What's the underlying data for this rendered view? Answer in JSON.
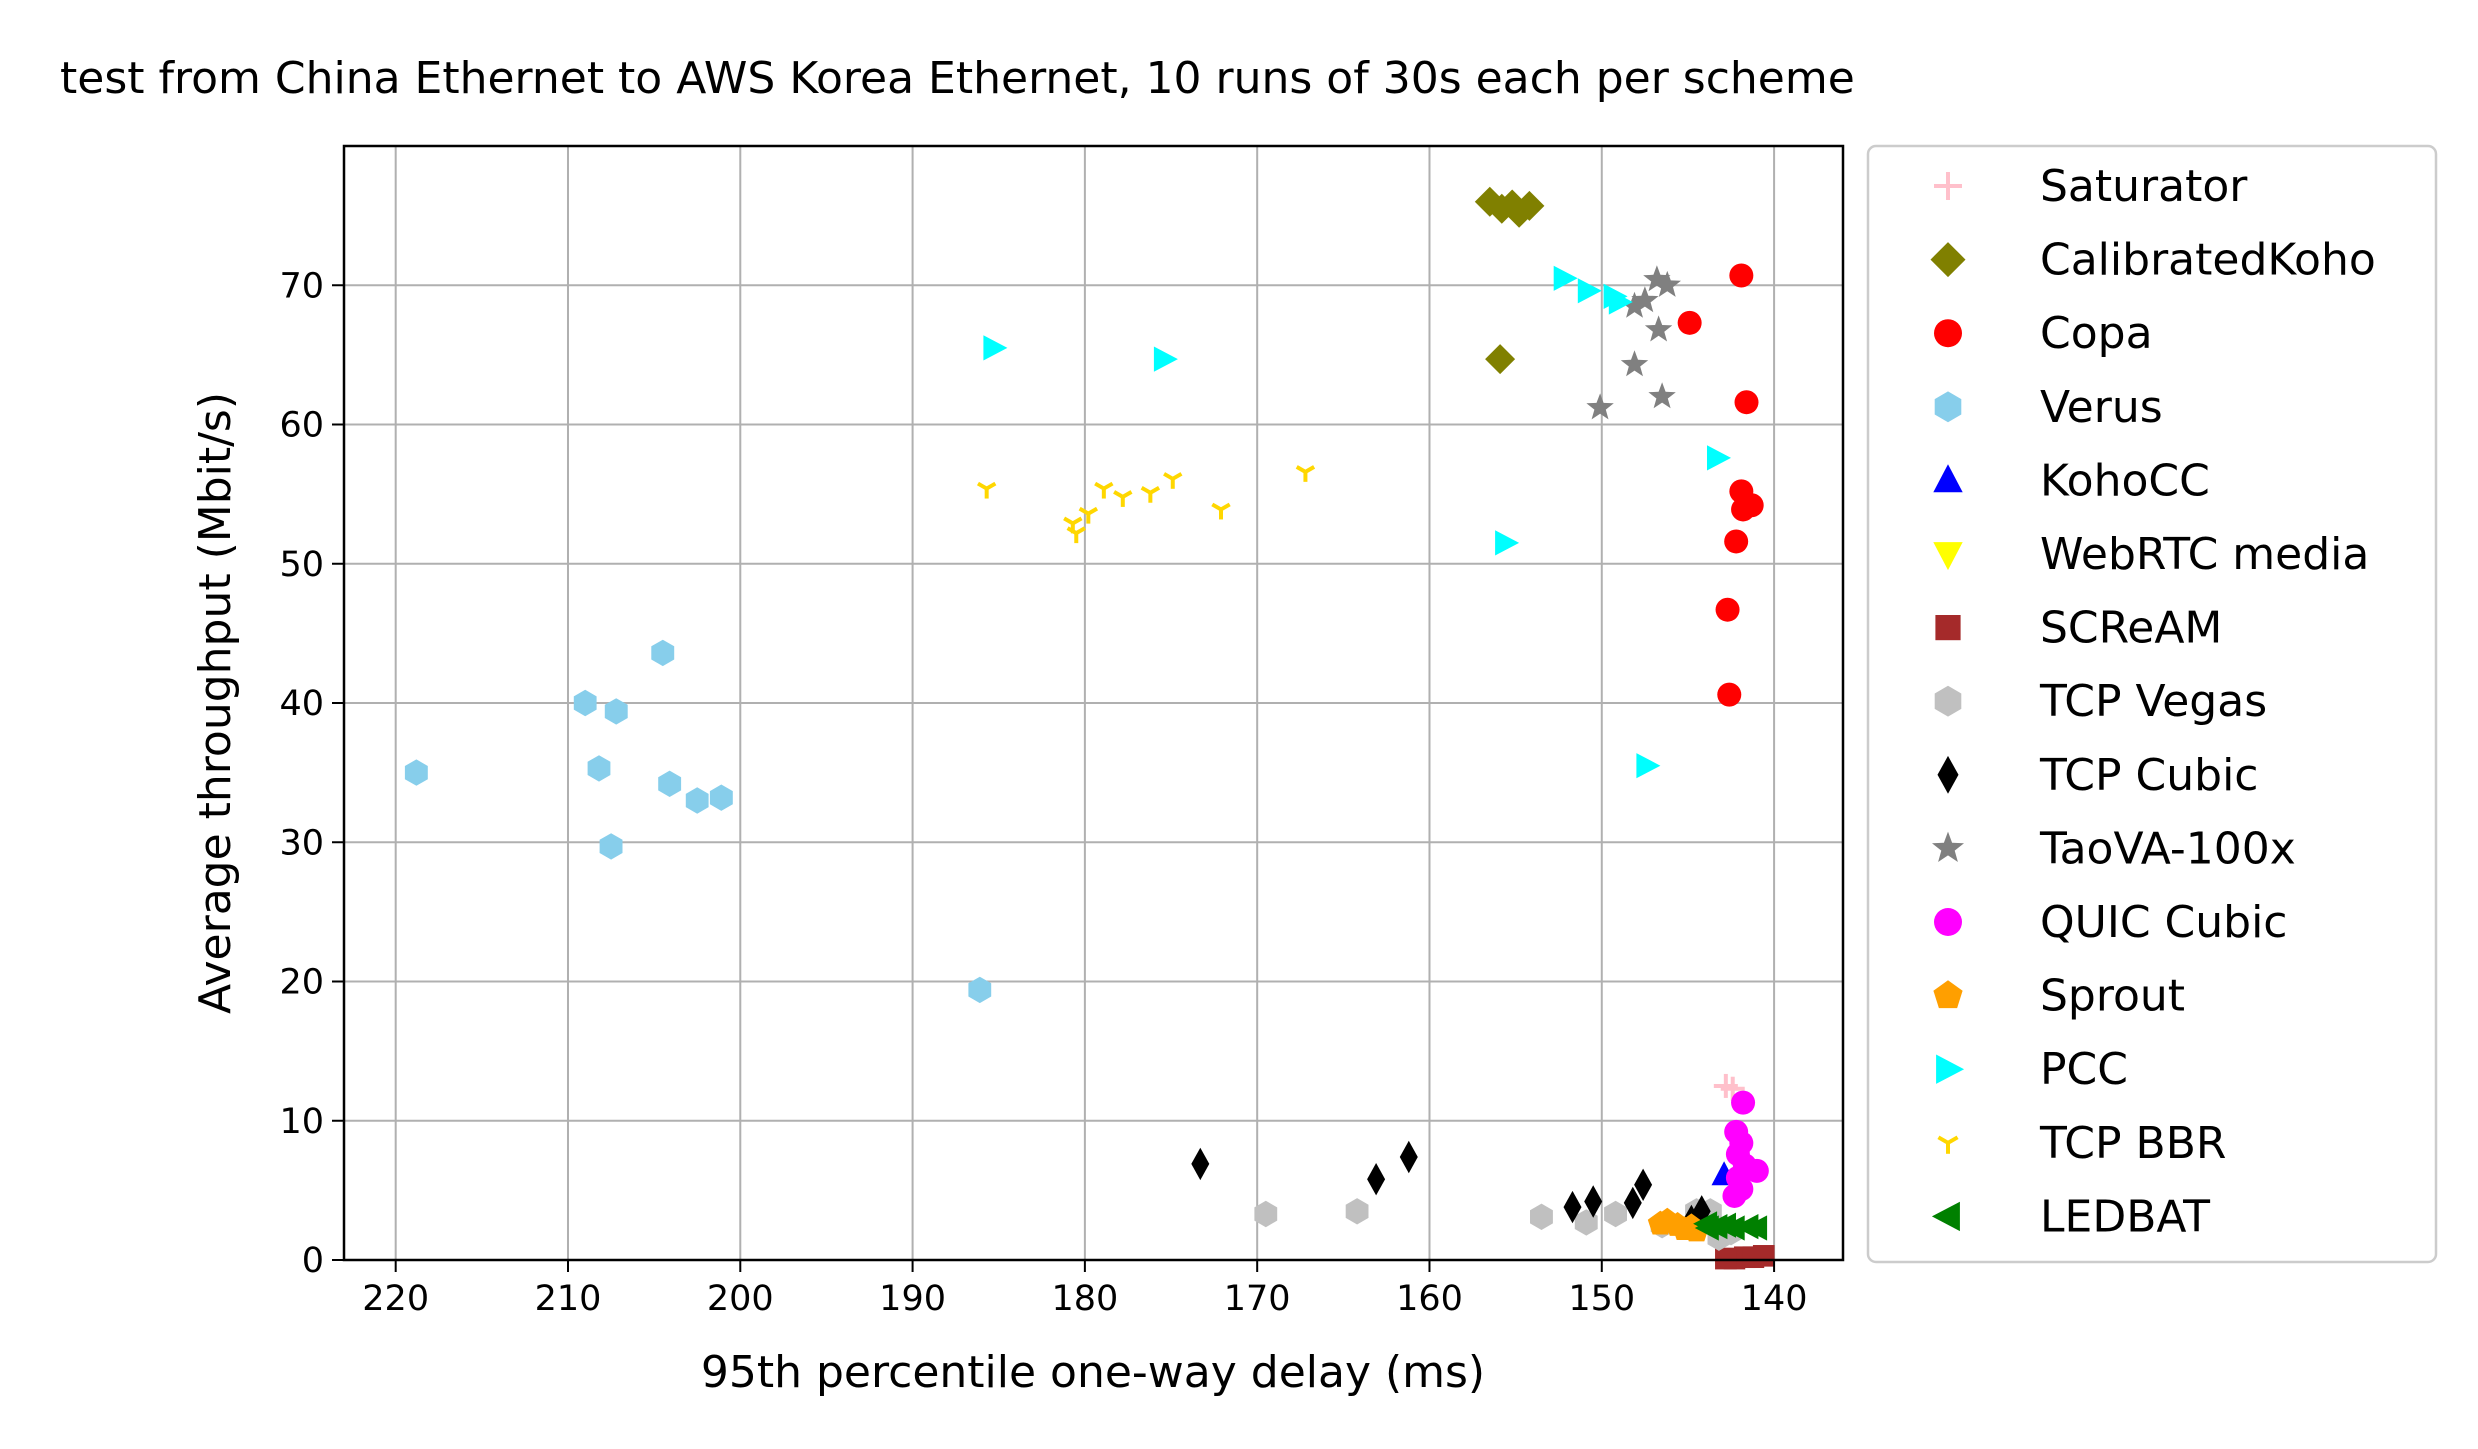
{
  "chart_data": {
    "type": "scatter",
    "title": "test from China Ethernet to AWS Korea Ethernet, 10 runs of 30s each per scheme",
    "xlabel": "95th percentile one-way delay (ms)",
    "ylabel": "Average throughput (Mbit/s)",
    "xlim": [
      223,
      136
    ],
    "ylim": [
      0,
      80
    ],
    "x_reversed": true,
    "xticks": [
      220,
      210,
      200,
      190,
      180,
      170,
      160,
      150,
      140
    ],
    "yticks": [
      0,
      10,
      20,
      30,
      40,
      50,
      60,
      70
    ],
    "grid": true,
    "legend_position": "outside-right",
    "series": [
      {
        "name": "Saturator",
        "color": "#ffc0cb",
        "marker": "plus",
        "points": [
          [
            142.8,
            12.5
          ],
          [
            142.4,
            12.3
          ]
        ]
      },
      {
        "name": "CalibratedKoho",
        "color": "#808000",
        "marker": "diamond",
        "points": [
          [
            156.5,
            76
          ],
          [
            155.8,
            75.5
          ],
          [
            155.2,
            75.8
          ],
          [
            154.8,
            75.2
          ],
          [
            154.2,
            75.7
          ],
          [
            155.9,
            64.7
          ]
        ]
      },
      {
        "name": "Copa",
        "color": "#ff0000",
        "marker": "circle",
        "points": [
          [
            141.9,
            70.7
          ],
          [
            144.9,
            67.3
          ],
          [
            141.6,
            61.6
          ],
          [
            141.9,
            55.2
          ],
          [
            141.3,
            54.2
          ],
          [
            141.8,
            53.9
          ],
          [
            142.2,
            51.6
          ],
          [
            142.7,
            46.7
          ],
          [
            142.6,
            40.6
          ]
        ]
      },
      {
        "name": "Verus",
        "color": "#87ceeb",
        "marker": "hexagon",
        "points": [
          [
            218.8,
            35
          ],
          [
            204.5,
            43.6
          ],
          [
            209,
            40
          ],
          [
            207.2,
            39.4
          ],
          [
            208.2,
            35.3
          ],
          [
            204.1,
            34.2
          ],
          [
            202.5,
            33
          ],
          [
            201.1,
            33.2
          ],
          [
            207.5,
            29.7
          ],
          [
            186.1,
            19.4
          ]
        ]
      },
      {
        "name": "KohoCC",
        "color": "#0000ff",
        "marker": "triangle-up",
        "points": [
          [
            142.9,
            6.1
          ]
        ]
      },
      {
        "name": "WebRTC media",
        "color": "#ffff00",
        "marker": "triangle-down",
        "points": []
      },
      {
        "name": "SCReAM",
        "color": "#a52a2a",
        "marker": "square",
        "points": [
          [
            142.3,
            0.1
          ],
          [
            141.7,
            0.2
          ],
          [
            141.2,
            0.2
          ],
          [
            140.6,
            0.3
          ],
          [
            142.8,
            0.1
          ]
        ]
      },
      {
        "name": "TCP Vegas",
        "color": "#c0c0c0",
        "marker": "hexagon",
        "points": [
          [
            169.5,
            3.3
          ],
          [
            164.2,
            3.5
          ],
          [
            153.5,
            3.1
          ],
          [
            150.9,
            2.7
          ],
          [
            149.2,
            3.3
          ],
          [
            146.5,
            2.5
          ],
          [
            144.5,
            3.5
          ],
          [
            143.7,
            3.5
          ],
          [
            143.2,
            1.6
          ],
          [
            142.5,
            2.0
          ]
        ]
      },
      {
        "name": "TCP Cubic",
        "color": "#000000",
        "marker": "thin-diamond",
        "points": [
          [
            173.3,
            6.9
          ],
          [
            163.1,
            5.8
          ],
          [
            161.2,
            7.4
          ],
          [
            151.7,
            3.8
          ],
          [
            150.5,
            4.2
          ],
          [
            148.2,
            4.1
          ],
          [
            147.6,
            5.4
          ],
          [
            144.2,
            3.5
          ],
          [
            144.8,
            2.8
          ]
        ]
      },
      {
        "name": "TaoVA-100x",
        "color": "#808080",
        "marker": "star",
        "points": [
          [
            146.8,
            70.4
          ],
          [
            146.2,
            70.0
          ],
          [
            147.5,
            68.9
          ],
          [
            148.1,
            68.5
          ],
          [
            146.7,
            66.8
          ],
          [
            148.1,
            64.3
          ],
          [
            146.5,
            62
          ],
          [
            150.1,
            61.2
          ]
        ]
      },
      {
        "name": "QUIC Cubic",
        "color": "#ff00ff",
        "marker": "circle",
        "points": [
          [
            141.8,
            11.3
          ],
          [
            142.2,
            9.2
          ],
          [
            141.9,
            8.4
          ],
          [
            142.1,
            7.6
          ],
          [
            141.7,
            6.8
          ],
          [
            141.0,
            6.4
          ],
          [
            142.1,
            5.9
          ],
          [
            141.9,
            5.1
          ],
          [
            142.3,
            4.6
          ]
        ]
      },
      {
        "name": "Sprout",
        "color": "#ff9f00",
        "marker": "pentagon",
        "points": [
          [
            146.2,
            2.8
          ],
          [
            145.6,
            2.5
          ],
          [
            145.2,
            2.2
          ],
          [
            144.8,
            2.4
          ],
          [
            146.6,
            2.6
          ],
          [
            144.5,
            2.1
          ]
        ]
      },
      {
        "name": "PCC",
        "color": "#00ffff",
        "marker": "triangle-right",
        "points": [
          [
            185.3,
            65.5
          ],
          [
            175.4,
            64.7
          ],
          [
            152.2,
            70.5
          ],
          [
            150.8,
            69.6
          ],
          [
            149.3,
            69.2
          ],
          [
            149.0,
            68.8
          ],
          [
            143.3,
            57.6
          ],
          [
            155.6,
            51.5
          ],
          [
            147.4,
            35.5
          ]
        ]
      },
      {
        "name": "TCP BBR",
        "color": "#ffd700",
        "marker": "tri-down",
        "points": [
          [
            185.7,
            55.4
          ],
          [
            180.7,
            52.9
          ],
          [
            180.5,
            52.2
          ],
          [
            179.8,
            53.6
          ],
          [
            178.9,
            55.4
          ],
          [
            177.8,
            54.8
          ],
          [
            176.2,
            55.1
          ],
          [
            174.9,
            56.1
          ],
          [
            172.1,
            53.9
          ],
          [
            167.2,
            56.6
          ]
        ]
      },
      {
        "name": "LEDBAT",
        "color": "#008000",
        "marker": "triangle-left",
        "points": [
          [
            143.8,
            2.3
          ],
          [
            143.3,
            2.4
          ],
          [
            142.8,
            2.5
          ],
          [
            142.3,
            2.3
          ],
          [
            141.5,
            2.4
          ],
          [
            141.0,
            2.3
          ],
          [
            143.9,
            2.6
          ]
        ]
      }
    ]
  }
}
